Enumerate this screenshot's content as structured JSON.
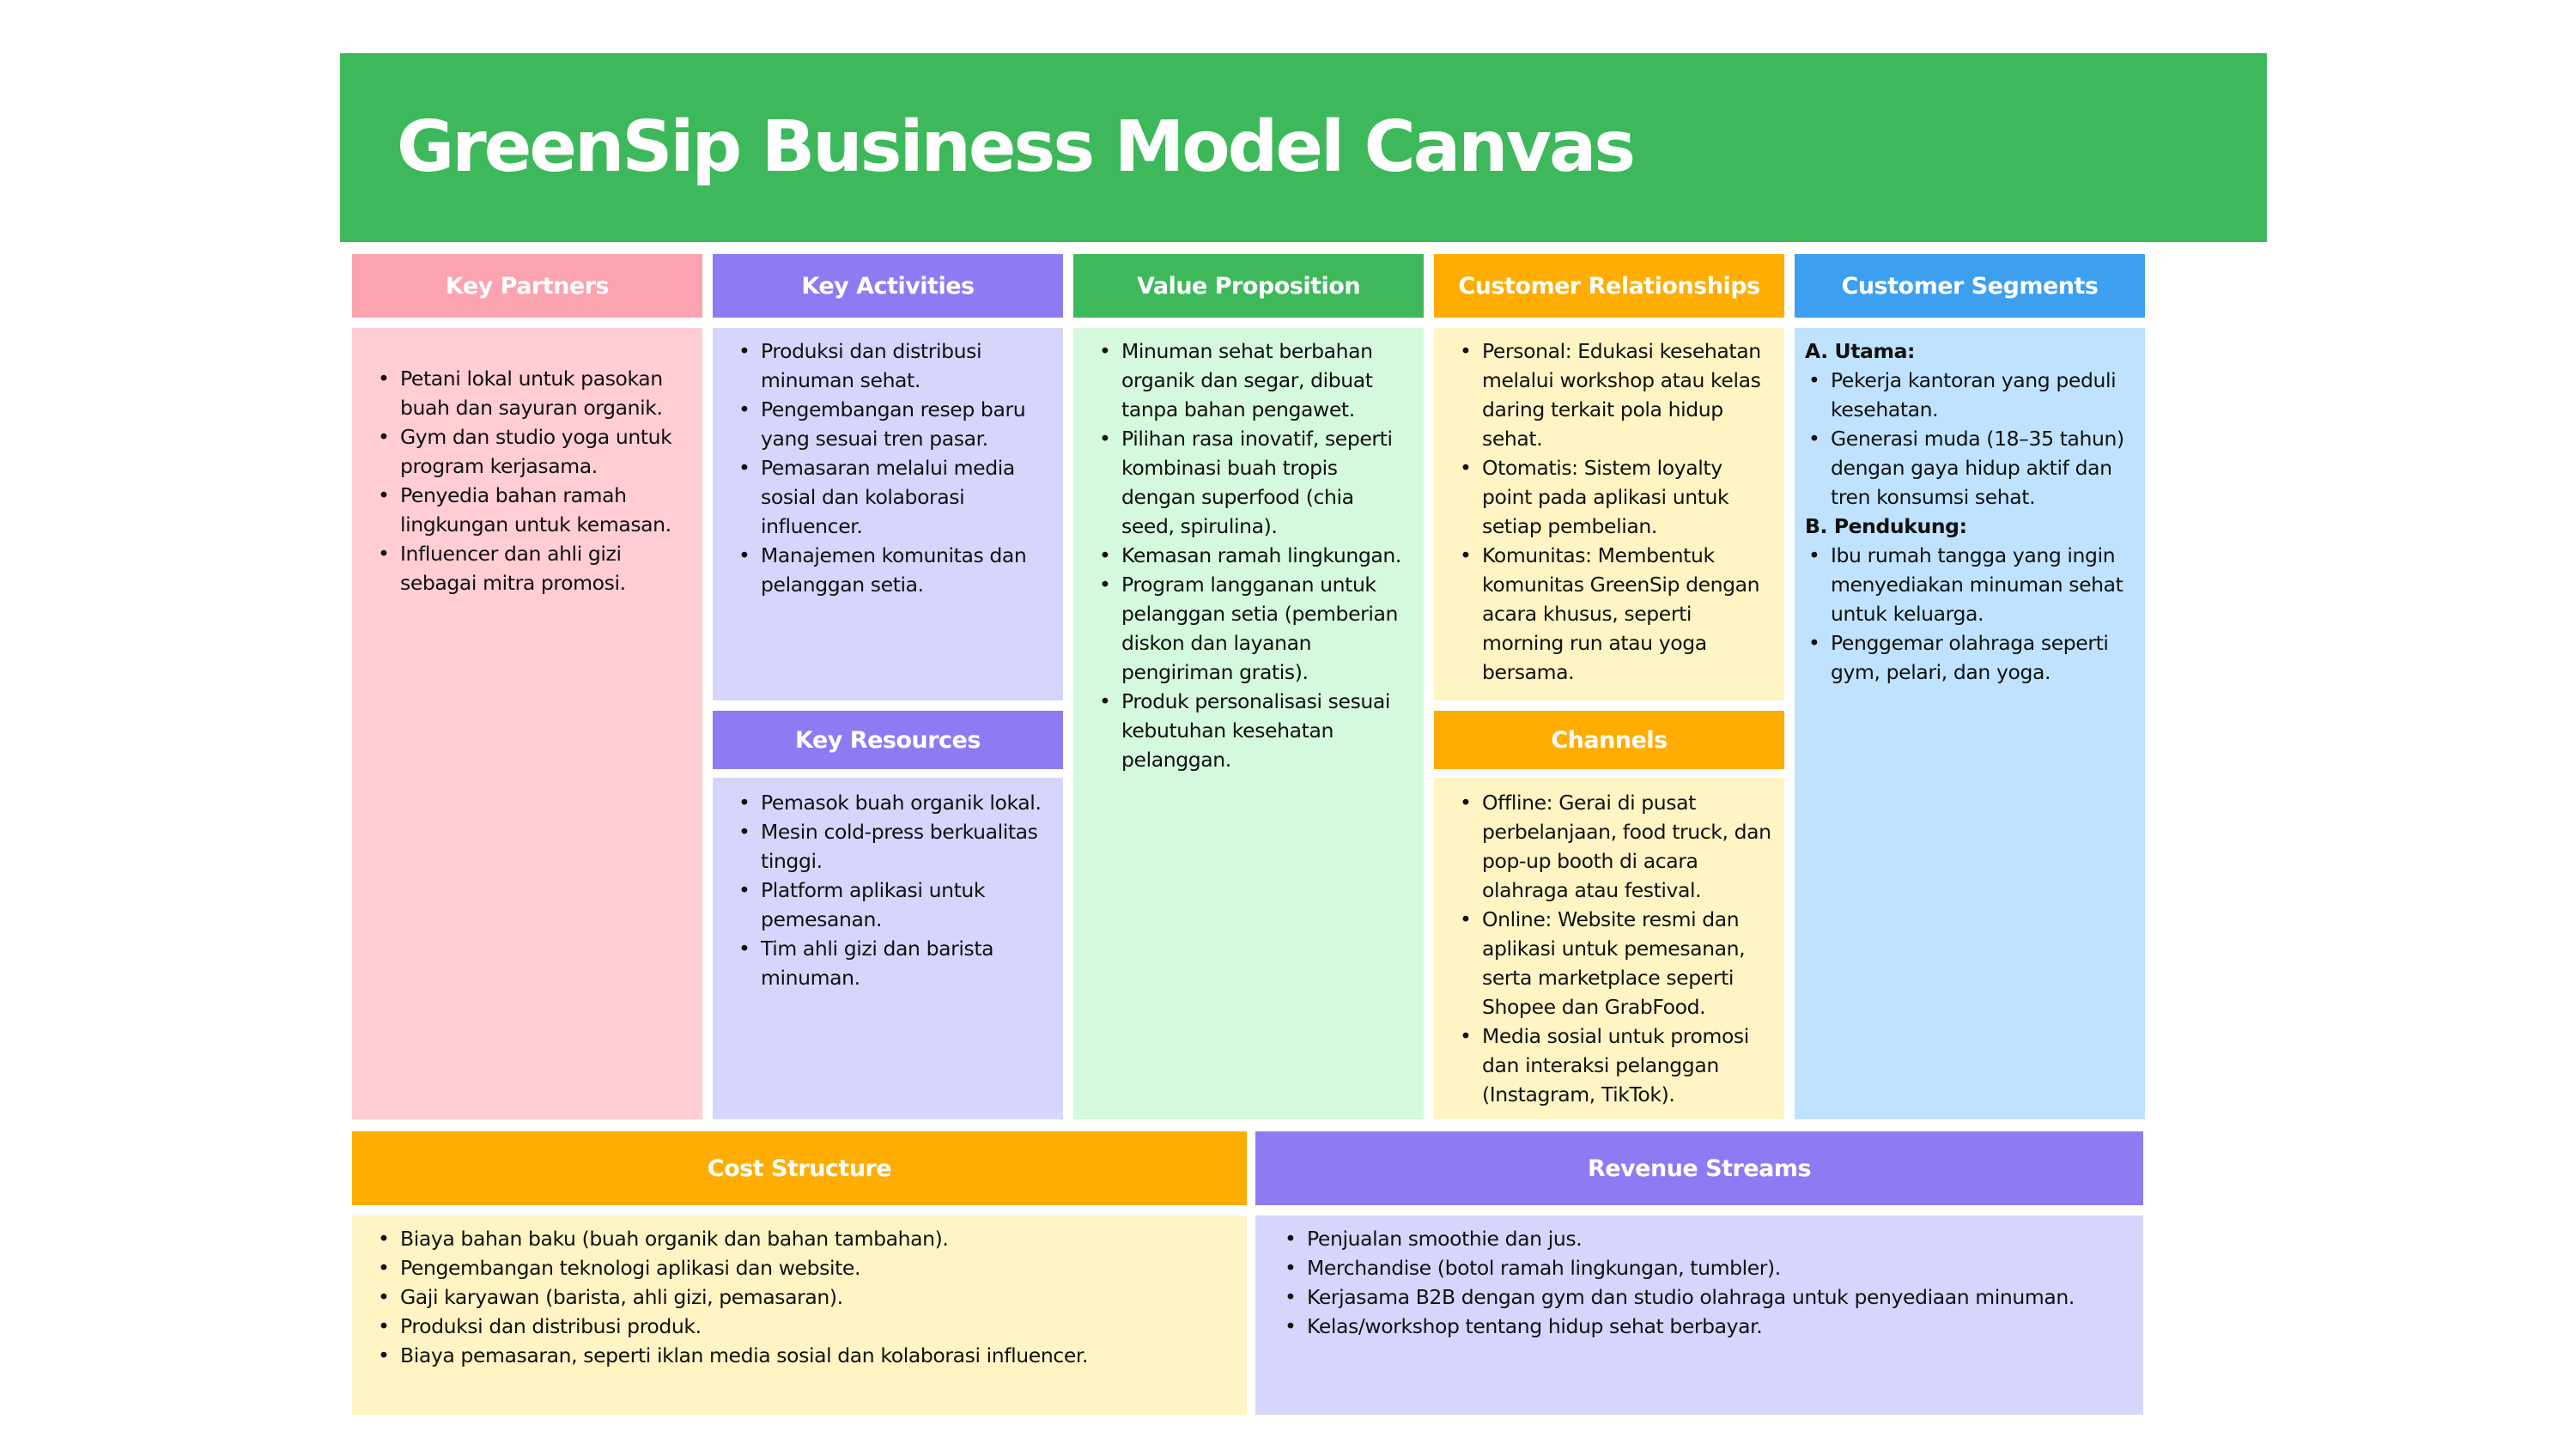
{
  "title": "GreenSip Business Model Canvas",
  "colors": {
    "banner": "#3db95b",
    "pink_header": "#fba3ae",
    "pink_body": "#ffcdd2",
    "purple_header": "#8d7bf3",
    "purple_body": "#d6d6fc",
    "green_header": "#3db95b",
    "green_body": "#d4f9dc",
    "orange_header": "#ffad00",
    "orange_body": "#fff4c4",
    "blue_header": "#3d9ff0",
    "blue_body": "#bfe3fe"
  },
  "key_partners": {
    "title": "Key Partners",
    "items": [
      "Petani lokal untuk pasokan buah dan sayuran organik.",
      "Gym dan studio yoga untuk program kerjasama.",
      "Penyedia bahan ramah lingkungan untuk kemasan.",
      "Influencer dan ahli gizi sebagai mitra promosi."
    ]
  },
  "key_activities": {
    "title": "Key Activities",
    "items": [
      "Produksi dan distribusi minuman sehat.",
      "Pengembangan resep baru yang sesuai tren pasar.",
      "Pemasaran melalui media sosial dan kolaborasi influencer.",
      "Manajemen komunitas dan pelanggan setia."
    ]
  },
  "key_resources": {
    "title": "Key Resources",
    "items": [
      "Pemasok buah organik lokal.",
      "Mesin cold-press berkualitas tinggi.",
      "Platform aplikasi untuk pemesanan.",
      "Tim ahli gizi dan barista minuman."
    ]
  },
  "value_proposition": {
    "title": "Value Proposition",
    "items": [
      "Minuman sehat berbahan organik dan segar, dibuat tanpa bahan pengawet.",
      "Pilihan rasa inovatif, seperti kombinasi buah tropis dengan superfood (chia seed, spirulina).",
      "Kemasan ramah lingkungan.",
      "Program langganan untuk pelanggan setia (pemberian diskon dan layanan pengiriman gratis).",
      "Produk personalisasi sesuai kebutuhan kesehatan pelanggan."
    ]
  },
  "customer_relationships": {
    "title": "Customer Relationships",
    "items": [
      "Personal: Edukasi kesehatan melalui workshop atau kelas daring terkait pola hidup sehat.",
      "Otomatis: Sistem loyalty point pada aplikasi untuk setiap pembelian.",
      "Komunitas: Membentuk komunitas GreenSip dengan acara khusus, seperti morning run atau yoga bersama."
    ]
  },
  "channels": {
    "title": "Channels",
    "items": [
      "Offline: Gerai di pusat perbelanjaan, food truck, dan pop-up booth di acara olahraga atau festival.",
      "Online: Website resmi dan aplikasi untuk pemesanan, serta marketplace seperti Shopee dan GrabFood.",
      "Media sosial untuk promosi dan interaksi pelanggan (Instagram, TikTok)."
    ]
  },
  "customer_segments": {
    "title": "Customer Segments",
    "groups": [
      {
        "label": "A. Utama:",
        "items": [
          "Pekerja kantoran yang peduli kesehatan.",
          "Generasi muda (18–35 tahun) dengan gaya hidup aktif dan tren konsumsi sehat."
        ]
      },
      {
        "label": "B. Pendukung:",
        "items": [
          "Ibu rumah tangga yang ingin menyediakan minuman sehat untuk keluarga.",
          "Penggemar olahraga seperti gym, pelari, dan yoga."
        ]
      }
    ]
  },
  "cost_structure": {
    "title": "Cost Structure",
    "items": [
      "Biaya bahan baku (buah organik dan bahan tambahan).",
      "Pengembangan teknologi aplikasi dan website.",
      "Gaji karyawan (barista, ahli gizi, pemasaran).",
      "Produksi dan distribusi produk.",
      "Biaya pemasaran, seperti iklan media sosial dan kolaborasi influencer."
    ]
  },
  "revenue_streams": {
    "title": "Revenue Streams",
    "items": [
      "Penjualan smoothie dan jus.",
      "Merchandise (botol ramah lingkungan, tumbler).",
      "Kerjasama B2B dengan gym dan studio olahraga untuk penyediaan minuman.",
      "Kelas/workshop tentang hidup sehat berbayar."
    ]
  }
}
